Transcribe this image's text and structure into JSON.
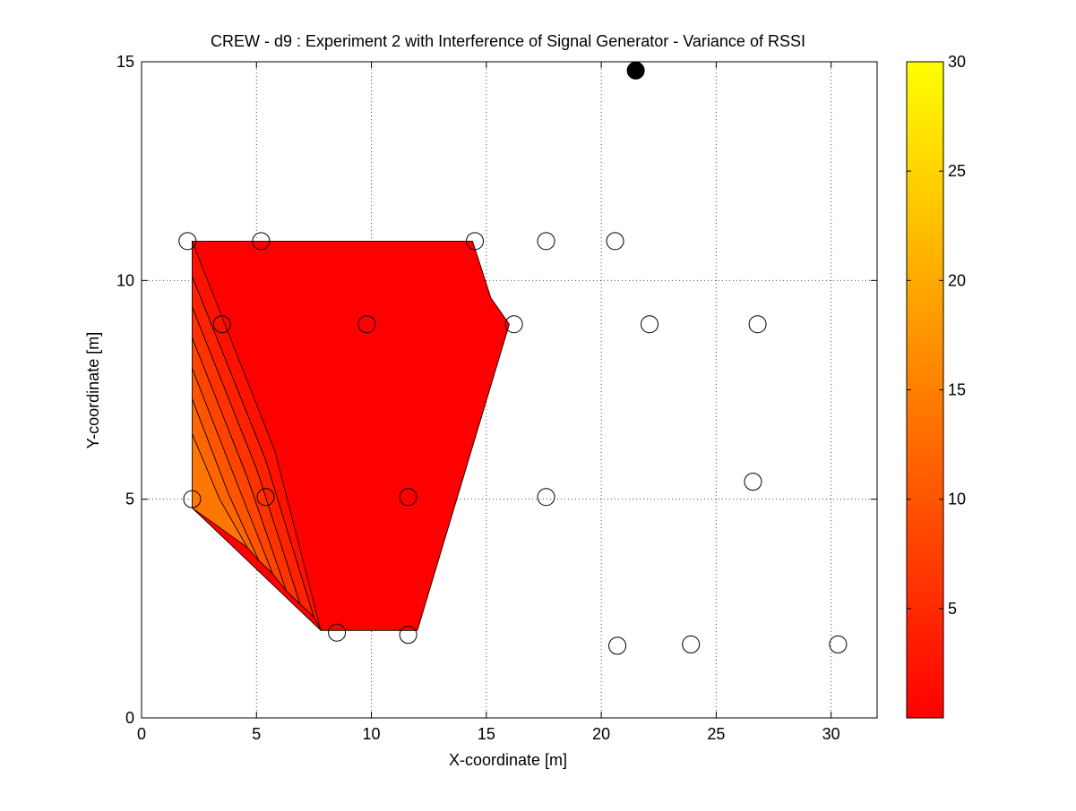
{
  "chart_data": {
    "type": "contour",
    "title": "CREW - d9 : Experiment 2 with Interference of Signal Generator - Variance of RSSI",
    "xlabel": "X-coordinate [m]",
    "ylabel": "Y-coordinate [m]",
    "xlim": [
      0,
      32
    ],
    "ylim": [
      0,
      15
    ],
    "xticks": [
      0,
      5,
      10,
      15,
      20,
      25,
      30
    ],
    "yticks": [
      0,
      5,
      10,
      15
    ],
    "grid": true,
    "colormap": "autumn",
    "colorbar": {
      "range": [
        0,
        30
      ],
      "ticks": [
        5,
        10,
        15,
        20,
        25,
        30
      ],
      "low_color": "#ff0000",
      "high_color": "#ffff00"
    },
    "interference_source": {
      "x": 21.5,
      "y": 14.8
    },
    "sensor_nodes": [
      {
        "x": 2.0,
        "y": 10.9
      },
      {
        "x": 5.2,
        "y": 10.9
      },
      {
        "x": 14.5,
        "y": 10.9
      },
      {
        "x": 17.6,
        "y": 10.9
      },
      {
        "x": 20.6,
        "y": 10.9
      },
      {
        "x": 3.5,
        "y": 9.0
      },
      {
        "x": 9.8,
        "y": 9.0
      },
      {
        "x": 16.2,
        "y": 9.0
      },
      {
        "x": 22.1,
        "y": 9.0
      },
      {
        "x": 26.8,
        "y": 9.0
      },
      {
        "x": 26.6,
        "y": 5.4
      },
      {
        "x": 2.2,
        "y": 5.0
      },
      {
        "x": 5.4,
        "y": 5.05
      },
      {
        "x": 11.6,
        "y": 5.05
      },
      {
        "x": 17.6,
        "y": 5.05
      },
      {
        "x": 8.5,
        "y": 1.95
      },
      {
        "x": 11.6,
        "y": 1.9
      },
      {
        "x": 20.7,
        "y": 1.65
      },
      {
        "x": 23.9,
        "y": 1.68
      },
      {
        "x": 30.3,
        "y": 1.68
      }
    ],
    "contour_region": [
      [
        2.2,
        10.9
      ],
      [
        14.4,
        10.9
      ],
      [
        15.2,
        9.6
      ],
      [
        16.0,
        9.0
      ],
      [
        12.0,
        2.0
      ],
      [
        7.8,
        2.0
      ],
      [
        2.2,
        4.8
      ]
    ],
    "contour_bands": [
      {
        "value": 14,
        "boundary": [
          [
            2.2,
            6.5
          ],
          [
            3.4,
            5.0
          ],
          [
            4.6,
            3.9
          ],
          [
            2.2,
            4.8
          ]
        ]
      },
      {
        "value": 12,
        "boundary": [
          [
            2.2,
            7.3
          ],
          [
            3.8,
            5.1
          ],
          [
            5.1,
            3.6
          ],
          [
            4.6,
            3.9
          ],
          [
            3.4,
            5.0
          ],
          [
            2.2,
            6.5
          ]
        ]
      },
      {
        "value": 10,
        "boundary": [
          [
            2.2,
            8.0
          ],
          [
            4.2,
            5.3
          ],
          [
            5.7,
            3.3
          ],
          [
            5.1,
            3.6
          ],
          [
            3.8,
            5.1
          ],
          [
            2.2,
            7.3
          ]
        ]
      },
      {
        "value": 8,
        "boundary": [
          [
            2.2,
            8.7
          ],
          [
            4.6,
            5.5
          ],
          [
            6.3,
            2.9
          ],
          [
            5.7,
            3.3
          ],
          [
            4.2,
            5.3
          ],
          [
            2.2,
            8.0
          ]
        ]
      },
      {
        "value": 6,
        "boundary": [
          [
            2.2,
            9.4
          ],
          [
            5.0,
            5.7
          ],
          [
            6.9,
            2.6
          ],
          [
            6.3,
            2.9
          ],
          [
            4.6,
            5.5
          ],
          [
            2.2,
            8.7
          ]
        ]
      },
      {
        "value": 4,
        "boundary": [
          [
            2.2,
            10.1
          ],
          [
            5.4,
            5.9
          ],
          [
            7.5,
            2.3
          ],
          [
            6.9,
            2.6
          ],
          [
            5.0,
            5.7
          ],
          [
            2.2,
            9.4
          ]
        ]
      },
      {
        "value": 2,
        "boundary": [
          [
            2.2,
            10.9
          ],
          [
            5.8,
            6.1
          ],
          [
            7.8,
            2.0
          ],
          [
            7.5,
            2.3
          ],
          [
            5.4,
            5.9
          ],
          [
            2.2,
            10.1
          ]
        ]
      }
    ]
  }
}
